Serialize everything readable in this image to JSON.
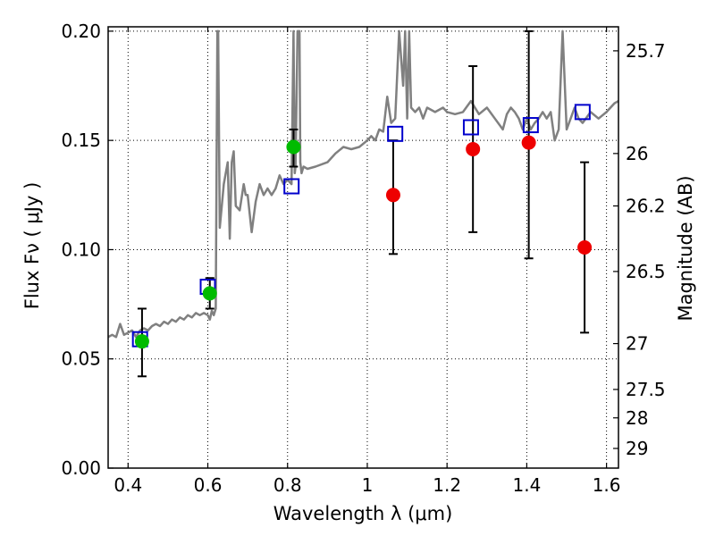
{
  "chart_data": {
    "type": "scatter",
    "xlabel": "Wavelength  λ (μm)",
    "ylabel": "Flux  Fν  ( μJy )",
    "ylabel_right": "Magnitude (AB)",
    "xlim": [
      0.35,
      1.63
    ],
    "ylim": [
      0.0,
      0.202
    ],
    "grid": true,
    "x_ticks": [
      0.4,
      0.6,
      0.8,
      1.0,
      1.2,
      1.4,
      1.6
    ],
    "x_tick_labels": [
      "0.4",
      "0.6",
      "0.8",
      "1",
      "1.2",
      "1.4",
      "1.6"
    ],
    "y_ticks": [
      0.0,
      0.05,
      0.1,
      0.15,
      0.2
    ],
    "y_tick_labels": [
      "0.00",
      "0.05",
      "0.10",
      "0.15",
      "0.20"
    ],
    "right_ticks": [
      {
        "flux": 0.191,
        "label": "25.7"
      },
      {
        "flux": 0.144,
        "label": "26"
      },
      {
        "flux": 0.12,
        "label": "26.2"
      },
      {
        "flux": 0.09,
        "label": "26.5"
      },
      {
        "flux": 0.057,
        "label": "27"
      },
      {
        "flux": 0.036,
        "label": "27.5"
      },
      {
        "flux": 0.023,
        "label": "28"
      },
      {
        "flux": 0.009,
        "label": "29"
      }
    ],
    "colors": {
      "template": "#808080",
      "observed_green": "#00bb00",
      "observed_red": "#ee0000",
      "model_box": "#0000cc",
      "errorbar": "#000000"
    },
    "series": [
      {
        "kind": "template_spectrum",
        "x": [
          0.35,
          0.36,
          0.37,
          0.38,
          0.39,
          0.4,
          0.41,
          0.42,
          0.43,
          0.44,
          0.45,
          0.46,
          0.47,
          0.48,
          0.49,
          0.5,
          0.51,
          0.52,
          0.53,
          0.54,
          0.55,
          0.56,
          0.57,
          0.58,
          0.59,
          0.6,
          0.605,
          0.61,
          0.615,
          0.62,
          0.624,
          0.626,
          0.63,
          0.64,
          0.65,
          0.655,
          0.66,
          0.665,
          0.67,
          0.68,
          0.69,
          0.695,
          0.7,
          0.71,
          0.72,
          0.73,
          0.74,
          0.75,
          0.76,
          0.77,
          0.78,
          0.79,
          0.8,
          0.81,
          0.815,
          0.818,
          0.82,
          0.825,
          0.83,
          0.832,
          0.835,
          0.84,
          0.85,
          0.87,
          0.9,
          0.92,
          0.94,
          0.96,
          0.98,
          1.0,
          1.01,
          1.02,
          1.03,
          1.04,
          1.05,
          1.06,
          1.07,
          1.08,
          1.09,
          1.095,
          1.1,
          1.105,
          1.11,
          1.12,
          1.13,
          1.14,
          1.15,
          1.17,
          1.19,
          1.2,
          1.22,
          1.24,
          1.26,
          1.28,
          1.3,
          1.32,
          1.34,
          1.35,
          1.36,
          1.37,
          1.38,
          1.39,
          1.4,
          1.41,
          1.42,
          1.43,
          1.44,
          1.45,
          1.46,
          1.47,
          1.48,
          1.49,
          1.5,
          1.51,
          1.52,
          1.53,
          1.54,
          1.56,
          1.58,
          1.6,
          1.62,
          1.63
        ],
        "y": [
          0.06,
          0.061,
          0.06,
          0.066,
          0.061,
          0.062,
          0.063,
          0.06,
          0.063,
          0.064,
          0.063,
          0.065,
          0.066,
          0.065,
          0.067,
          0.066,
          0.068,
          0.067,
          0.069,
          0.068,
          0.07,
          0.069,
          0.071,
          0.07,
          0.071,
          0.07,
          0.068,
          0.072,
          0.07,
          0.073,
          0.2,
          0.2,
          0.11,
          0.13,
          0.14,
          0.105,
          0.14,
          0.145,
          0.12,
          0.118,
          0.13,
          0.125,
          0.125,
          0.108,
          0.122,
          0.13,
          0.125,
          0.128,
          0.125,
          0.128,
          0.134,
          0.13,
          0.132,
          0.13,
          0.2,
          0.135,
          0.138,
          0.2,
          0.2,
          0.14,
          0.135,
          0.138,
          0.137,
          0.138,
          0.14,
          0.144,
          0.147,
          0.146,
          0.147,
          0.15,
          0.152,
          0.15,
          0.155,
          0.154,
          0.17,
          0.158,
          0.16,
          0.2,
          0.175,
          0.2,
          0.16,
          0.2,
          0.165,
          0.163,
          0.165,
          0.16,
          0.165,
          0.163,
          0.165,
          0.163,
          0.162,
          0.163,
          0.168,
          0.162,
          0.165,
          0.16,
          0.155,
          0.162,
          0.165,
          0.163,
          0.16,
          0.155,
          0.16,
          0.155,
          0.158,
          0.16,
          0.163,
          0.16,
          0.163,
          0.15,
          0.155,
          0.2,
          0.155,
          0.16,
          0.165,
          0.16,
          0.158,
          0.163,
          0.16,
          0.163,
          0.167,
          0.168
        ]
      },
      {
        "kind": "observed",
        "x": [
          0.435,
          0.605,
          0.815,
          1.065,
          1.265,
          1.405,
          1.545
        ],
        "y": [
          0.058,
          0.08,
          0.147,
          0.125,
          0.146,
          0.149,
          0.101
        ],
        "yerr_low": [
          0.042,
          0.073,
          0.138,
          0.098,
          0.108,
          0.096,
          0.062
        ],
        "yerr_high": [
          0.073,
          0.087,
          0.155,
          0.15,
          0.184,
          0.2,
          0.14
        ],
        "color": [
          "green",
          "green",
          "green",
          "red",
          "red",
          "red",
          "red"
        ]
      },
      {
        "kind": "model_photometry",
        "x": [
          0.43,
          0.6,
          0.81,
          1.07,
          1.26,
          1.41,
          1.54
        ],
        "y": [
          0.059,
          0.083,
          0.129,
          0.153,
          0.156,
          0.157,
          0.163
        ]
      }
    ]
  }
}
